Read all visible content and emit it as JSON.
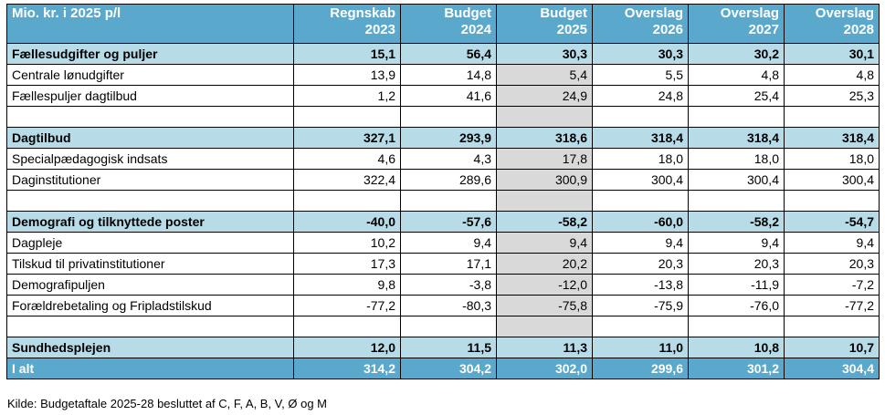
{
  "header": {
    "label": "Mio. kr. i 2025 p/l",
    "columns": [
      [
        "Regnskab",
        "2023"
      ],
      [
        "Budget",
        "2024"
      ],
      [
        "Budget",
        "2025"
      ],
      [
        "Overslag",
        "2026"
      ],
      [
        "Overslag",
        "2027"
      ],
      [
        "Overslag",
        "2028"
      ]
    ]
  },
  "rows": [
    {
      "label": "Fællesudgifter og puljer",
      "values": [
        "15,1",
        "56,4",
        "30,3",
        "30,3",
        "30,2",
        "30,1"
      ]
    },
    {
      "label": "Centrale lønudgifter",
      "values": [
        "13,9",
        "14,8",
        "5,4",
        "5,5",
        "4,8",
        "4,8"
      ]
    },
    {
      "label": "Fællespuljer dagtilbud",
      "values": [
        "1,2",
        "41,6",
        "24,9",
        "24,8",
        "25,4",
        "25,3"
      ]
    },
    {
      "label": "",
      "values": [
        "",
        "",
        "",
        "",
        "",
        ""
      ]
    },
    {
      "label": "Dagtilbud",
      "values": [
        "327,1",
        "293,9",
        "318,6",
        "318,4",
        "318,4",
        "318,4"
      ]
    },
    {
      "label": "Specialpædagogisk indsats",
      "values": [
        "4,6",
        "4,3",
        "17,8",
        "18,0",
        "18,0",
        "18,0"
      ]
    },
    {
      "label": "Daginstitutioner",
      "values": [
        "322,4",
        "289,6",
        "300,9",
        "300,4",
        "300,4",
        "300,4"
      ]
    },
    {
      "label": "",
      "values": [
        "",
        "",
        "",
        "",
        "",
        ""
      ]
    },
    {
      "label": "Demografi og tilknyttede poster",
      "values": [
        "-40,0",
        "-57,6",
        "-58,2",
        "-60,0",
        "-58,2",
        "-54,7"
      ]
    },
    {
      "label": "Dagpleje",
      "values": [
        "10,2",
        "9,4",
        "9,4",
        "9,4",
        "9,4",
        "9,4"
      ]
    },
    {
      "label": "Tilskud til privatinstitutioner",
      "values": [
        "17,3",
        "17,1",
        "20,2",
        "20,3",
        "20,3",
        "20,3"
      ]
    },
    {
      "label": "Demografipuljen",
      "values": [
        "9,8",
        "-3,8",
        "-12,0",
        "-13,8",
        "-11,9",
        "-7,2"
      ]
    },
    {
      "label": "Forældrebetaling og Fripladstilskud",
      "values": [
        "-77,2",
        "-80,3",
        "-75,8",
        "-75,9",
        "-76,0",
        "-77,2"
      ]
    },
    {
      "label": "",
      "values": [
        "",
        "",
        "",
        "",
        "",
        ""
      ]
    },
    {
      "label": "Sundhedsplejen",
      "values": [
        "12,0",
        "11,5",
        "11,3",
        "11,0",
        "10,8",
        "10,7"
      ]
    },
    {
      "label": "I alt",
      "values": [
        "314,2",
        "304,2",
        "302,0",
        "299,6",
        "301,2",
        "304,4"
      ]
    }
  ],
  "source": "Kilde: Budgetaftale 2025-28 besluttet af C, F, A, B, V, Ø og M",
  "colors": {
    "header_bg": "#5aa8cc",
    "section_bg": "#b8dbe8",
    "highlight_col_bg": "#d9d9d9"
  }
}
